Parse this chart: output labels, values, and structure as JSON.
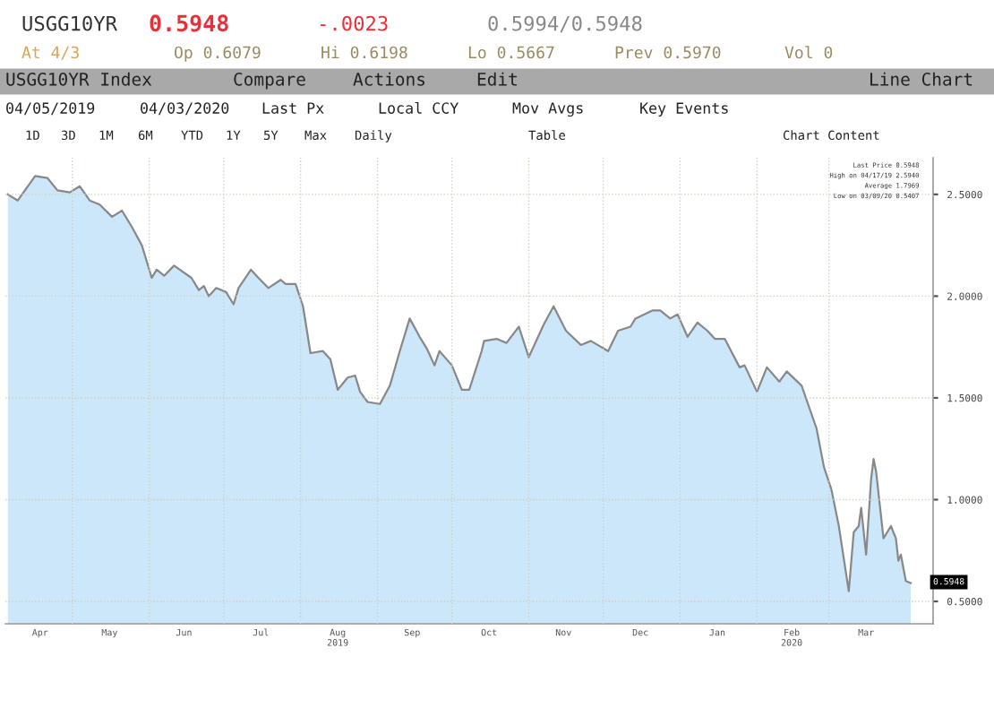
{
  "chart_data": {
    "type": "area",
    "title": "USGG10YR Index",
    "annotations": [
      "USGG10YR",
      "0.5948",
      "-.0023",
      "0.5994/0.5948",
      "At 4/3",
      "Op 0.6079",
      "Hi 0.6198",
      "Lo 0.5667",
      "Prev 0.5970",
      "Vol 0",
      "Compare",
      "Actions",
      "Edit",
      "Line Chart",
      "04/05/2019",
      "04/03/2020",
      "Last Px",
      "Local CCY",
      "Mov Avgs",
      "Key Events",
      "1D",
      "3D",
      "1M",
      "6M",
      "YTD",
      "1Y",
      "5Y",
      "Max",
      "Daily",
      "Table",
      "Chart Content",
      "Last Price 0.5948",
      "High on 04/17/19 2.5940",
      "Average 1.7969",
      "Low on 03/09/20 0.5407",
      {
        "text": "0.5948",
        "x": "2020-04-03",
        "y": 0.5948
      }
    ],
    "x": [
      "2019-04-05",
      "2019-04-09",
      "2019-04-16",
      "2019-04-21",
      "2019-04-25",
      "2019-04-30",
      "2019-05-04",
      "2019-05-08",
      "2019-05-12",
      "2019-05-17",
      "2019-05-21",
      "2019-05-25",
      "2019-05-29",
      "2019-06-02",
      "2019-06-04",
      "2019-06-07",
      "2019-06-11",
      "2019-06-18",
      "2019-06-21",
      "2019-06-23",
      "2019-06-25",
      "2019-06-28",
      "2019-07-02",
      "2019-07-05",
      "2019-07-07",
      "2019-07-12",
      "2019-07-15",
      "2019-07-19",
      "2019-07-24",
      "2019-07-26",
      "2019-07-30",
      "2019-08-02",
      "2019-08-05",
      "2019-08-10",
      "2019-08-13",
      "2019-08-16",
      "2019-08-20",
      "2019-08-23",
      "2019-08-25",
      "2019-08-28",
      "2019-09-02",
      "2019-09-06",
      "2019-09-10",
      "2019-09-14",
      "2019-09-18",
      "2019-09-21",
      "2019-09-24",
      "2019-09-26",
      "2019-10-01",
      "2019-10-05",
      "2019-10-08",
      "2019-10-13",
      "2019-10-14",
      "2019-10-19",
      "2019-10-23",
      "2019-10-28",
      "2019-11-01",
      "2019-11-07",
      "2019-11-11",
      "2019-11-16",
      "2019-11-22",
      "2019-11-26",
      "2019-12-03",
      "2019-12-07",
      "2019-12-12",
      "2019-12-14",
      "2019-12-21",
      "2019-12-24",
      "2019-12-28",
      "2019-12-31",
      "2020-01-04",
      "2020-01-08",
      "2020-01-12",
      "2020-01-15",
      "2020-01-19",
      "2020-01-25",
      "2020-01-27",
      "2020-02-01",
      "2020-02-05",
      "2020-02-10",
      "2020-02-13",
      "2020-02-19",
      "2020-02-25",
      "2020-02-28",
      "2020-03-02",
      "2020-03-05",
      "2020-03-09",
      "2020-03-11",
      "2020-03-13",
      "2020-03-14",
      "2020-03-16",
      "2020-03-18",
      "2020-03-19",
      "2020-03-20",
      "2020-03-23",
      "2020-03-26",
      "2020-03-28",
      "2020-03-29",
      "2020-03-30",
      "2020-04-01",
      "2020-04-03"
    ],
    "series": [
      {
        "color": "#888888",
        "values": [
          2.5,
          2.47,
          2.59,
          2.58,
          2.52,
          2.51,
          2.54,
          2.47,
          2.45,
          2.39,
          2.42,
          2.34,
          2.25,
          2.09,
          2.13,
          2.1,
          2.15,
          2.09,
          2.03,
          2.05,
          2.0,
          2.04,
          2.02,
          1.96,
          2.04,
          2.13,
          2.09,
          2.04,
          2.08,
          2.06,
          2.06,
          1.95,
          1.72,
          1.73,
          1.69,
          1.54,
          1.6,
          1.61,
          1.53,
          1.48,
          1.47,
          1.56,
          1.73,
          1.89,
          1.8,
          1.74,
          1.66,
          1.73,
          1.66,
          1.54,
          1.54,
          1.73,
          1.78,
          1.79,
          1.77,
          1.85,
          1.7,
          1.86,
          1.95,
          1.83,
          1.76,
          1.78,
          1.73,
          1.83,
          1.85,
          1.89,
          1.93,
          1.93,
          1.89,
          1.91,
          1.8,
          1.87,
          1.83,
          1.79,
          1.79,
          1.65,
          1.66,
          1.53,
          1.65,
          1.58,
          1.63,
          1.56,
          1.35,
          1.16,
          1.05,
          0.87,
          0.55,
          0.84,
          0.87,
          0.96,
          0.73,
          1.1,
          1.2,
          1.14,
          0.81,
          0.87,
          0.81,
          0.7,
          0.73,
          0.6,
          0.59
        ]
      }
    ],
    "xlim": [
      "2019-04-04",
      "2020-04-12"
    ],
    "xticks": [
      {
        "value": "2019-05-01",
        "label": null
      },
      {
        "value": "2019-06-01",
        "label": null
      },
      {
        "value": "2019-07-01",
        "label": null
      },
      {
        "value": "2019-08-01",
        "label": null
      },
      {
        "value": "2019-09-01",
        "label": null
      },
      {
        "value": "2019-10-01",
        "label": null
      },
      {
        "value": "2019-11-01",
        "label": null
      },
      {
        "value": "2019-12-01",
        "label": null
      },
      {
        "value": "2020-01-01",
        "label": null
      },
      {
        "value": "2020-02-01",
        "label": null
      },
      {
        "value": "2020-03-01",
        "label": null
      },
      {
        "value": "2019-04-18",
        "label": "Apr"
      },
      {
        "value": "2019-05-16",
        "label": "May"
      },
      {
        "value": "2019-06-15",
        "label": "Jun"
      },
      {
        "value": "2019-07-16",
        "label": "Jul"
      },
      {
        "value": "2019-08-16",
        "label": "Aug\n2019"
      },
      {
        "value": "2019-09-15",
        "label": "Sep"
      },
      {
        "value": "2019-10-16",
        "label": "Oct"
      },
      {
        "value": "2019-11-15",
        "label": "Nov"
      },
      {
        "value": "2019-12-16",
        "label": "Dec"
      },
      {
        "value": "2020-01-16",
        "label": "Jan"
      },
      {
        "value": "2020-02-15",
        "label": "Feb\n2020"
      },
      {
        "value": "2020-03-16",
        "label": "Mar"
      }
    ],
    "ylim": [
      0.39,
      2.68
    ],
    "yticks": [
      {
        "value": 0.5,
        "label": "0.5000"
      },
      {
        "value": 1.0,
        "label": "1.0000"
      },
      {
        "value": 1.5,
        "label": "1.5000"
      },
      {
        "value": 2.0,
        "label": "2.0000"
      },
      {
        "value": 2.5,
        "label": "2.5000"
      }
    ],
    "grid": true
  }
}
